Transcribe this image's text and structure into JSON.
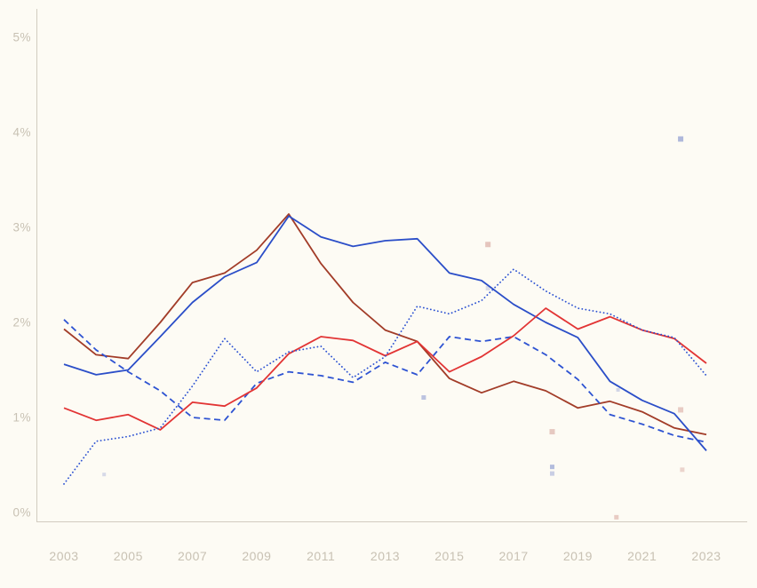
{
  "page": {
    "background": "#fdfbf4"
  },
  "chart_data": {
    "type": "line",
    "title": "",
    "xlabel": "",
    "ylabel": "",
    "grid": "off",
    "legend": "none",
    "xlim": [
      2003,
      2023
    ],
    "ylim": [
      0,
      5
    ],
    "x": [
      2003,
      2004,
      2005,
      2006,
      2007,
      2008,
      2009,
      2010,
      2011,
      2012,
      2013,
      2014,
      2015,
      2016,
      2017,
      2018,
      2019,
      2020,
      2021,
      2022,
      2023
    ],
    "x_tick_labels": [
      "2003",
      "2005",
      "2007",
      "2009",
      "2011",
      "2013",
      "2015",
      "2017",
      "2019",
      "2021",
      "2023"
    ],
    "y_tick_labels": [
      "0%",
      "1%",
      "2%",
      "3%",
      "4%",
      "5%"
    ],
    "axis_color": "#d2ccc0",
    "tick_label_color": "#c8c1b3",
    "series": [
      {
        "name": "darkred-solid",
        "style": "solid",
        "color": "#a23c28",
        "values": [
          1.93,
          1.66,
          1.62,
          2.0,
          2.42,
          2.52,
          2.76,
          3.14,
          2.62,
          2.21,
          1.92,
          1.8,
          1.41,
          1.26,
          1.38,
          1.28,
          1.1,
          1.17,
          1.06,
          0.89,
          0.82
        ]
      },
      {
        "name": "blue-solid",
        "style": "solid",
        "color": "#2b4ec8",
        "values": [
          1.56,
          1.45,
          1.5,
          1.85,
          2.21,
          2.48,
          2.63,
          3.12,
          2.9,
          2.8,
          2.86,
          2.88,
          2.52,
          2.44,
          2.19,
          2.0,
          1.84,
          1.38,
          1.18,
          1.04,
          0.65
        ]
      },
      {
        "name": "blue-dashed",
        "style": "dashed",
        "color": "#2e53d2",
        "values": [
          2.03,
          1.71,
          1.48,
          1.28,
          1.0,
          0.97,
          1.36,
          1.48,
          1.44,
          1.37,
          1.58,
          1.45,
          1.85,
          1.8,
          1.85,
          1.66,
          1.4,
          1.03,
          0.93,
          0.81,
          0.74
        ]
      },
      {
        "name": "red-solid",
        "style": "solid",
        "color": "#e23434",
        "values": [
          1.1,
          0.97,
          1.03,
          0.87,
          1.16,
          1.12,
          1.31,
          1.67,
          1.85,
          1.81,
          1.65,
          1.8,
          1.48,
          1.64,
          1.86,
          2.15,
          1.93,
          2.06,
          1.92,
          1.83,
          1.57
        ]
      },
      {
        "name": "blue-dotted",
        "style": "dotted",
        "color": "#2e53d2",
        "values": [
          0.3,
          0.75,
          0.8,
          0.89,
          1.33,
          1.83,
          1.48,
          1.69,
          1.75,
          1.42,
          1.64,
          2.17,
          2.09,
          2.23,
          2.56,
          2.33,
          2.15,
          2.09,
          1.92,
          1.84,
          1.44
        ]
      }
    ],
    "marker_colors": {
      "lavender": "#a6b0d8",
      "pink": "#e2bfb7"
    },
    "scatter_points": [
      {
        "x": 2004.25,
        "y": 0.4,
        "color": "lavender",
        "size": 4,
        "opacity": 0.45
      },
      {
        "x": 2014.2,
        "y": 1.21,
        "color": "lavender",
        "size": 5,
        "opacity": 0.75
      },
      {
        "x": 2016.2,
        "y": 2.36,
        "color": "lavender",
        "size": 5,
        "opacity": 0.4
      },
      {
        "x": 2016.2,
        "y": 2.82,
        "color": "pink",
        "size": 6,
        "opacity": 0.9
      },
      {
        "x": 2018.2,
        "y": 0.85,
        "color": "pink",
        "size": 6,
        "opacity": 0.85
      },
      {
        "x": 2018.2,
        "y": 0.48,
        "color": "lavender",
        "size": 5,
        "opacity": 0.85
      },
      {
        "x": 2018.2,
        "y": 0.41,
        "color": "lavender",
        "size": 5,
        "opacity": 0.6
      },
      {
        "x": 2020.25,
        "y": 1.29,
        "color": "lavender",
        "size": 4,
        "opacity": 0.5
      },
      {
        "x": 2020.2,
        "y": -0.05,
        "color": "pink",
        "size": 5,
        "opacity": 0.8
      },
      {
        "x": 2022.2,
        "y": 3.93,
        "color": "lavender",
        "size": 6,
        "opacity": 0.9
      },
      {
        "x": 2022.2,
        "y": 1.08,
        "color": "pink",
        "size": 6,
        "opacity": 0.8
      },
      {
        "x": 2022.25,
        "y": 0.45,
        "color": "pink",
        "size": 5,
        "opacity": 0.65
      }
    ]
  }
}
